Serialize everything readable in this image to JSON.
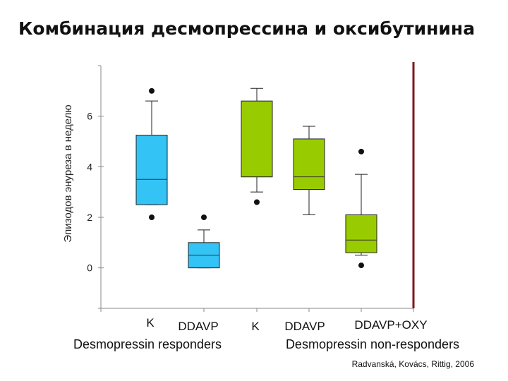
{
  "title": "Комбинация десмопрессина и оксибутинина",
  "citation": "Radvanská, Kovács, Rittig, 2006",
  "colors": {
    "responders": "#33c3f5",
    "non_responders": "#99cc00",
    "divider": "#7a1a1a"
  },
  "chart_data": {
    "type": "box",
    "ylabel": "Эпизодов энуреза в неделю",
    "ylim": [
      -1.6,
      8
    ],
    "yticks": [
      0,
      2,
      4,
      6
    ],
    "groups": [
      {
        "label": "Desmopressin responders",
        "categories": [
          0,
          1
        ]
      },
      {
        "label": "Desmopressin non-responders",
        "categories": [
          2,
          3,
          4
        ]
      }
    ],
    "boxes": [
      {
        "label": "K",
        "group": 0,
        "whisker_low": 2.5,
        "q1": 2.5,
        "median": 3.5,
        "q3": 5.25,
        "whisker_high": 6.6,
        "outliers": [
          7.0,
          2.0
        ]
      },
      {
        "label": "DDAVP",
        "group": 0,
        "whisker_low": 0.0,
        "q1": 0.0,
        "median": 0.5,
        "q3": 1.0,
        "whisker_high": 1.5,
        "outliers": [
          2.0
        ]
      },
      {
        "label": "K",
        "group": 1,
        "whisker_low": 3.0,
        "q1": 3.6,
        "median": 3.6,
        "q3": 6.6,
        "whisker_high": 7.1,
        "outliers": [
          2.6
        ]
      },
      {
        "label": "DDAVP",
        "group": 1,
        "whisker_low": 2.1,
        "q1": 3.1,
        "median": 3.6,
        "q3": 5.1,
        "whisker_high": 5.6,
        "outliers": []
      },
      {
        "label": "DDAVP+OXY",
        "group": 1,
        "whisker_low": 0.5,
        "q1": 0.6,
        "median": 1.1,
        "q3": 2.1,
        "whisker_high": 3.7,
        "outliers": [
          4.6,
          0.1
        ]
      }
    ]
  }
}
